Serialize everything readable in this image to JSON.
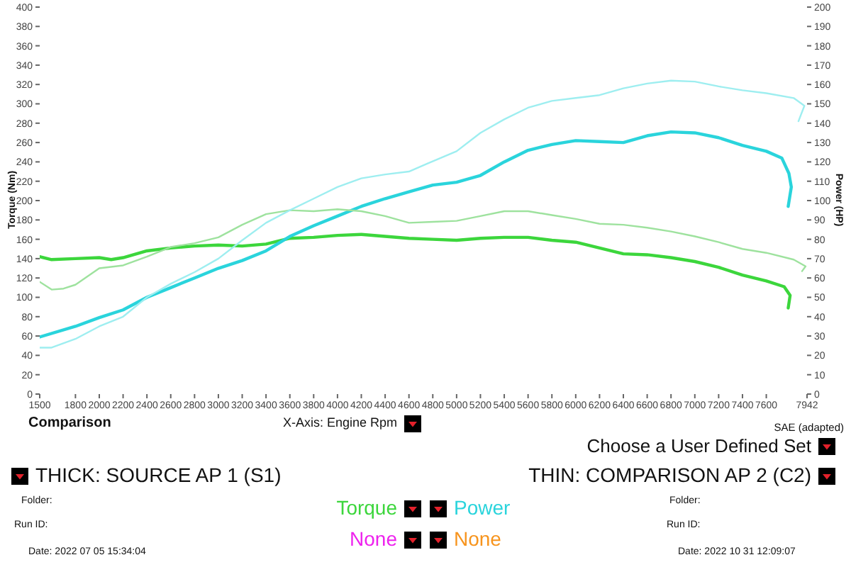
{
  "chart_data": {
    "type": "line",
    "xlabel": "X-Axis: Engine Rpm",
    "ylabel": "Torque (Nm)",
    "y2label": "Power (HP)",
    "xlim": [
      1500,
      7942
    ],
    "xticks": [
      1500,
      1800,
      2000,
      2200,
      2400,
      2600,
      2800,
      3000,
      3200,
      3400,
      3600,
      3800,
      4000,
      4200,
      4400,
      4600,
      4800,
      5000,
      5200,
      5400,
      5600,
      5800,
      6000,
      6200,
      6400,
      6600,
      6800,
      7000,
      7200,
      7400,
      7600,
      7942
    ],
    "ylim": [
      0,
      400
    ],
    "yticks": [
      0,
      20,
      40,
      60,
      80,
      100,
      120,
      140,
      160,
      180,
      200,
      220,
      240,
      260,
      280,
      300,
      320,
      340,
      360,
      380,
      400
    ],
    "y2lim": [
      0,
      200
    ],
    "y2ticks": [
      0,
      10,
      20,
      30,
      40,
      50,
      60,
      70,
      80,
      90,
      100,
      110,
      120,
      130,
      140,
      150,
      160,
      170,
      180,
      190,
      200
    ],
    "legend": "bottom",
    "series": [
      {
        "name": "Torque",
        "color": "#3cd63c",
        "x": [
          1500,
          1600,
          1800,
          2000,
          2100,
          2200,
          2400,
          2600,
          2800,
          3000,
          3200,
          3400,
          3600,
          3800,
          4000,
          4200,
          4400,
          4600,
          4800,
          5000,
          5200,
          5400,
          5600,
          5800,
          6000,
          6200,
          6400,
          6600,
          6800,
          7000,
          7200,
          7400,
          7600,
          7750,
          7800,
          7784
        ],
        "values": [
          142,
          139,
          140,
          141,
          139,
          141,
          148,
          151,
          153,
          154,
          153,
          155,
          161,
          162,
          164,
          165,
          163,
          161,
          160,
          159,
          161,
          162,
          162,
          159,
          157,
          151,
          145,
          144,
          141,
          137,
          131,
          123,
          117,
          111,
          102,
          89
        ]
      },
      {
        "name": "Power",
        "color": "#2ad4dc",
        "axis": "y2",
        "x": [
          1500,
          1800,
          2000,
          2200,
          2400,
          2600,
          2800,
          3000,
          3200,
          3400,
          3600,
          3800,
          4000,
          4200,
          4400,
          4600,
          4800,
          5000,
          5200,
          5400,
          5600,
          5800,
          6000,
          6200,
          6400,
          6600,
          6800,
          7000,
          7200,
          7400,
          7600,
          7730,
          7790,
          7810,
          7784
        ],
        "values": [
          29.5,
          35,
          39.5,
          43.5,
          50,
          55,
          60,
          65,
          69,
          74,
          81.5,
          87,
          92,
          97,
          101,
          104.5,
          108,
          109.5,
          113,
          120,
          126,
          129,
          131,
          130.5,
          130,
          133.5,
          135.5,
          135,
          132.5,
          128.5,
          125.5,
          122,
          114,
          107,
          97
        ]
      },
      {
        "color": "#9ee29e",
        "x": [
          1500,
          1600,
          1700,
          1800,
          2000,
          2200,
          2400,
          2600,
          2800,
          3000,
          3200,
          3400,
          3600,
          3800,
          4000,
          4200,
          4400,
          4600,
          4800,
          5000,
          5200,
          5400,
          5600,
          5800,
          6000,
          6200,
          6400,
          6600,
          6800,
          7000,
          7200,
          7400,
          7600,
          7830,
          7930,
          7900
        ],
        "values": [
          116,
          108,
          109,
          113,
          130,
          133,
          142,
          152,
          156,
          162,
          175,
          186,
          190,
          189,
          191,
          189,
          184,
          177,
          178,
          179,
          184,
          189,
          189,
          185,
          181,
          176,
          175,
          172,
          168,
          163,
          157,
          150,
          146,
          139,
          132,
          127
        ]
      },
      {
        "color": "#9eeef0",
        "axis": "y2",
        "x": [
          1500,
          1600,
          1800,
          2000,
          2200,
          2400,
          2600,
          2800,
          3000,
          3200,
          3400,
          3600,
          3800,
          4000,
          4200,
          4400,
          4600,
          4750,
          5000,
          5200,
          5400,
          5600,
          5800,
          6000,
          6200,
          6400,
          6600,
          6800,
          7000,
          7200,
          7400,
          7600,
          7830,
          7920,
          7870
        ],
        "values": [
          24,
          24,
          28.5,
          35,
          40,
          50,
          57,
          63,
          70,
          79.5,
          88.5,
          95,
          101,
          107,
          111.5,
          113.5,
          115,
          119,
          125.5,
          135,
          142,
          148,
          151.5,
          153,
          154.5,
          158,
          160.5,
          162,
          161.5,
          159,
          157,
          155.5,
          153,
          149,
          141
        ]
      }
    ],
    "annotations": [
      "Comparison",
      "SAE (adapted)",
      "Choose a User Defined Set",
      "THICK: SOURCE AP 1 (S1)",
      "THIN: COMPARISON AP 2 (C2)",
      "Folder:",
      "Folder:",
      "Run ID:",
      "Run ID:",
      "Date: 2022 07 05 15:34:04",
      "Date: 2022 10 31 12:09:07",
      "None",
      "None"
    ]
  }
}
